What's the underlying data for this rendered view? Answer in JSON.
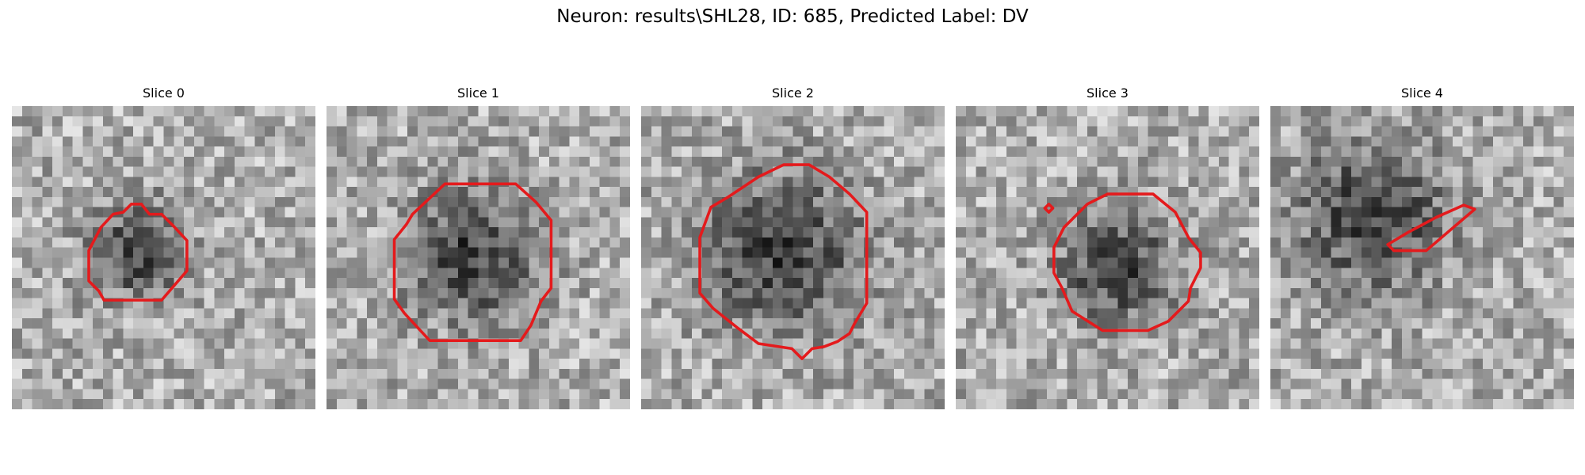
{
  "title": "Neuron: results\\SHL28, ID: 685, Predicted Label: DV",
  "panels": [
    {
      "title": "Slice 0"
    },
    {
      "title": "Slice 1"
    },
    {
      "title": "Slice 2"
    },
    {
      "title": "Slice 3"
    },
    {
      "title": "Slice 4"
    }
  ]
}
